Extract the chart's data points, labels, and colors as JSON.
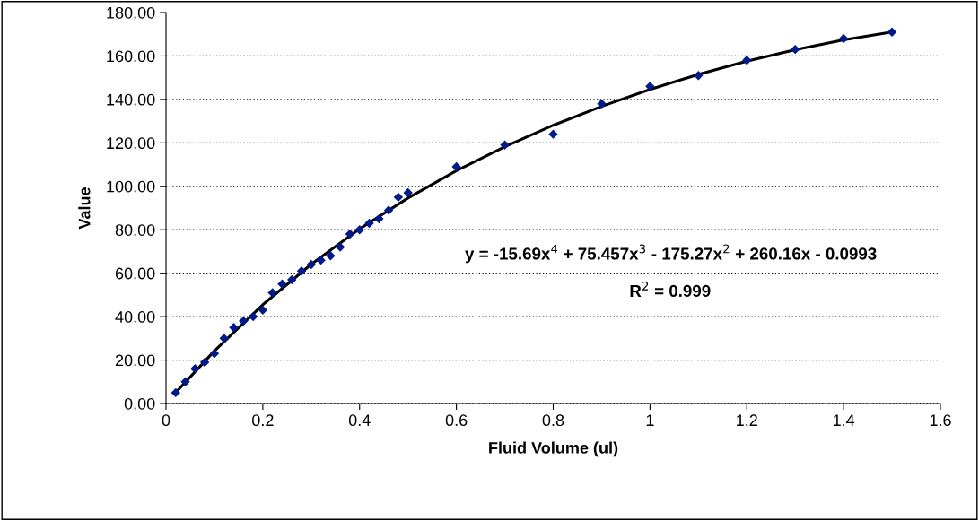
{
  "chart_data": {
    "type": "scatter",
    "xlabel": "Fluid Volume (ul)",
    "ylabel": "Value",
    "xlim": [
      0,
      1.6
    ],
    "xticks": [
      0,
      0.2,
      0.4,
      0.6,
      0.8,
      1,
      1.2,
      1.4,
      1.6
    ],
    "ylim": [
      0,
      180
    ],
    "yticks": [
      {
        "value": 0,
        "label": "0.00"
      },
      {
        "value": 20,
        "label": "20.00"
      },
      {
        "value": 40,
        "label": "40.00"
      },
      {
        "value": 60,
        "label": "60.00"
      },
      {
        "value": 80,
        "label": "80.00"
      },
      {
        "value": 100,
        "label": "100.00"
      },
      {
        "value": 120,
        "label": "120.00"
      },
      {
        "value": 140,
        "label": "140.00"
      },
      {
        "value": 160,
        "label": "160.00"
      },
      {
        "value": 180,
        "label": "180.00"
      }
    ],
    "grid": "y",
    "series": [
      {
        "marker": "diamond",
        "color": "#001a8c",
        "x": [
          0.02,
          0.04,
          0.06,
          0.08,
          0.1,
          0.12,
          0.14,
          0.16,
          0.18,
          0.2,
          0.22,
          0.24,
          0.26,
          0.28,
          0.3,
          0.32,
          0.34,
          0.36,
          0.38,
          0.4,
          0.42,
          0.44,
          0.46,
          0.48,
          0.5,
          0.6,
          0.7,
          0.8,
          0.9,
          1.0,
          1.1,
          1.2,
          1.3,
          1.4,
          1.5
        ],
        "values": [
          5,
          10,
          16,
          19,
          23,
          30,
          35,
          38,
          40,
          43,
          51,
          55,
          57,
          61,
          64,
          66,
          68,
          72,
          78,
          80,
          83,
          85,
          89,
          95,
          97,
          109,
          119,
          124,
          138,
          146,
          151,
          158,
          163,
          168,
          171
        ]
      },
      {
        "type": "line",
        "marker": "none",
        "color": "#000000",
        "x": [
          0.02,
          0.1,
          0.2,
          0.3,
          0.4,
          0.5,
          0.6,
          0.7,
          0.8,
          0.9,
          1.0,
          1.1,
          1.2,
          1.3,
          1.4,
          1.5
        ],
        "values": [
          5.0,
          24.2,
          45.5,
          64.1,
          80.4,
          94.6,
          107.2,
          118.2,
          128.1,
          136.8,
          144.6,
          151.5,
          157.6,
          162.9,
          167.4,
          171.0
        ]
      }
    ],
    "annotations": [
      "y = -15.69x$^{4}$ + 75.457x$^{3}$ - 175.27x$^{2}$ + 260.16x - 0.0993",
      "R$^{2}$ = 0.999"
    ]
  }
}
